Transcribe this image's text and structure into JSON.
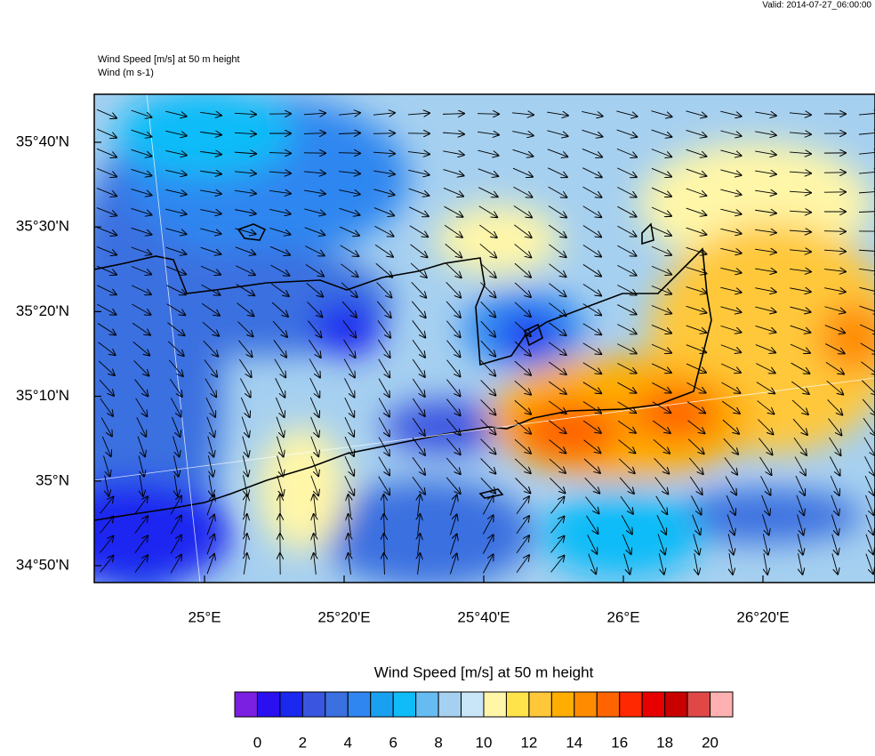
{
  "valid": "Valid: 2014-07-27_06:00:00",
  "map": {
    "title": "Wind Speed [m/s] at 50 m height",
    "subtitle": "Wind   (m s-1)",
    "xlim": [
      24.7367,
      26.6008
    ],
    "ylim": [
      34.8,
      35.7612
    ],
    "yticks": [
      {
        "value": 35.6667,
        "label": "35°40'N"
      },
      {
        "value": 35.5,
        "label": "35°30'N"
      },
      {
        "value": 35.3333,
        "label": "35°20'N"
      },
      {
        "value": 35.1667,
        "label": "35°10'N"
      },
      {
        "value": 35,
        "label": "35°N"
      },
      {
        "value": 34.8333,
        "label": "34°50'N"
      }
    ],
    "xticks": [
      {
        "value": 25,
        "label": "25°E"
      },
      {
        "value": 25.3333,
        "label": "25°20'E"
      },
      {
        "value": 25.6667,
        "label": "25°40'E"
      },
      {
        "value": 26,
        "label": "26°E"
      },
      {
        "value": 26.3333,
        "label": "26°20'E"
      }
    ]
  },
  "colorbar": {
    "title": "Wind Speed [m/s] at 50 m height",
    "lim": [
      -1,
      21
    ],
    "ticks": [
      0,
      2,
      4,
      6,
      8,
      10,
      12,
      14,
      16,
      18,
      20
    ],
    "colors": [
      "#7b1fe0",
      "#2a10f0",
      "#1a28f0",
      "#3a55e0",
      "#3a70e0",
      "#2f86f0",
      "#1aa0f0",
      "#10bcf8",
      "#66bcf0",
      "#a6d0f0",
      "#c8e6f8",
      "#fff6a8",
      "#ffe34a",
      "#ffc83a",
      "#ffae00",
      "#ff8c00",
      "#ff6400",
      "#ff2800",
      "#e80000",
      "#c80000",
      "#e04848",
      "#ffb0b0"
    ]
  }
}
